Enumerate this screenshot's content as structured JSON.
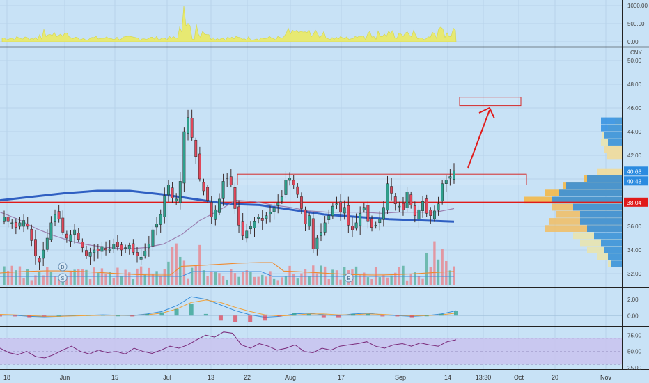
{
  "chart_data": [
    {
      "type": "bar",
      "panel": "top-volume",
      "title": "",
      "ylim": [
        0,
        1000
      ],
      "yticks": [
        "1000.00",
        "500.00",
        "0.00"
      ],
      "color": "#e9e96a"
    },
    {
      "type": "candlestick",
      "panel": "price",
      "title": "",
      "currency": "CNY",
      "ylim": [
        31,
        51
      ],
      "yticks": [
        "50.00",
        "48.00",
        "46.00",
        "44.00",
        "42.00",
        "40.00",
        "38.00",
        "36.00",
        "34.00",
        "32.00"
      ],
      "xticks": [
        "18",
        "Jun",
        "15",
        "Jul",
        "13",
        "22",
        "Aug",
        "17",
        "Sep",
        "14",
        "13:30",
        "Oct",
        "20",
        "Nov"
      ],
      "series": [
        {
          "name": "",
          "kind": "close",
          "values": [
            36.8,
            36.4,
            36.3,
            35.9,
            36.3,
            36.5,
            36.0,
            34.8,
            33.5,
            33.0,
            34.0,
            35.0,
            36.3,
            37.0,
            36.6,
            35.5,
            35.0,
            35.3,
            35.7,
            34.9,
            34.2,
            33.5,
            33.8,
            34.0,
            33.9,
            34.3,
            34.0,
            34.1,
            34.5,
            34.3,
            34.0,
            34.2,
            34.4,
            33.8,
            33.5,
            33.4,
            33.9,
            34.5,
            35.7,
            36.2,
            37.0,
            38.6,
            39.5,
            38.4,
            38.3,
            39.8,
            44.0,
            45.2,
            43.5,
            41.9,
            40.0,
            39.0,
            38.2,
            36.8,
            37.4,
            38.3,
            39.8,
            40.1,
            39.5,
            37.5,
            36.1,
            35.2,
            35.6,
            36.0,
            36.4,
            36.8,
            36.5,
            36.9,
            37.2,
            37.6,
            38.0,
            38.5,
            39.9,
            40.1,
            39.5,
            38.7,
            37.5,
            36.2,
            36.9,
            34.1,
            35.0,
            35.5,
            36.3,
            36.9,
            37.7,
            37.9,
            37.2,
            37.6,
            36.1,
            35.7,
            36.3,
            37.1,
            37.6,
            36.4,
            35.9,
            36.1,
            36.6,
            37.6,
            39.6,
            38.8,
            37.9,
            37.7,
            37.4,
            38.9,
            37.8,
            36.9,
            37.4,
            38.1,
            37.1,
            36.9,
            37.3,
            37.9,
            39.6,
            39.9,
            40.2,
            40.7
          ]
        },
        {
          "name": "",
          "kind": "ma-long",
          "color": "#2f5fc2",
          "values": [
            38.2,
            38.5,
            38.8,
            39.0,
            39.0,
            38.7,
            38.3,
            37.9,
            37.8,
            37.4,
            37.0,
            36.8,
            36.6,
            36.5,
            36.4
          ]
        },
        {
          "name": "",
          "kind": "ma-short",
          "color": "#9b7fb0",
          "values": [
            37.2,
            36.6,
            35.8,
            35.2,
            34.7,
            34.4,
            34.2,
            34.1,
            34.2,
            34.5,
            35.3,
            36.5,
            37.3,
            38.2,
            38.1,
            37.8,
            37.6,
            37.3,
            37.2,
            37.2,
            37.2,
            37.1,
            37.2,
            37.2,
            37.2,
            37.5
          ]
        }
      ],
      "price_labels": {
        "last": "40.63",
        "time": "40:43",
        "level": "38.04"
      },
      "level_line": 38.04,
      "resistance_zone": [
        39.5,
        40.4
      ],
      "target_zone": [
        46.2,
        46.9
      ],
      "markers": [
        "D",
        "S",
        "E"
      ],
      "volume_profile": "right-side, multicolor bands"
    },
    {
      "type": "line",
      "panel": "macd",
      "title": "",
      "ylim": [
        -1,
        3
      ],
      "yticks": [
        "2.00",
        "0.00"
      ],
      "series": [
        {
          "name": "",
          "color": "#3a8fd9",
          "values": [
            0.1,
            0.05,
            -0.1,
            -0.15,
            -0.1,
            0.0,
            0.05,
            0.1,
            0.05,
            0.0,
            0.2,
            0.5,
            1.2,
            2.3,
            2.0,
            1.3,
            0.6,
            0.1,
            -0.2,
            -0.1,
            0.2,
            0.3,
            0.1,
            0.0,
            0.2,
            0.3,
            0.1,
            0.0,
            -0.1,
            0.0,
            0.2,
            0.6
          ]
        },
        {
          "name": "",
          "color": "#f0a23a",
          "values": [
            0.15,
            0.1,
            0.0,
            -0.1,
            -0.1,
            -0.05,
            0.0,
            0.05,
            0.05,
            0.05,
            0.1,
            0.3,
            0.8,
            1.6,
            1.9,
            1.6,
            1.0,
            0.5,
            0.1,
            -0.05,
            0.05,
            0.2,
            0.2,
            0.1,
            0.1,
            0.2,
            0.15,
            0.05,
            0.0,
            0.0,
            0.1,
            0.3
          ]
        }
      ]
    },
    {
      "type": "line",
      "panel": "rsi",
      "title": "",
      "ylim": [
        25,
        85
      ],
      "yticks": [
        "75.00",
        "50.00",
        "25.00"
      ],
      "band": [
        30,
        70
      ],
      "series": [
        {
          "name": "",
          "color": "#7a2a7a",
          "values": [
            55,
            48,
            45,
            50,
            42,
            40,
            45,
            52,
            58,
            50,
            46,
            52,
            48,
            50,
            46,
            55,
            50,
            47,
            52,
            58,
            55,
            60,
            68,
            75,
            72,
            80,
            78,
            60,
            55,
            62,
            58,
            52,
            55,
            60,
            50,
            48,
            55,
            52,
            58,
            60,
            62,
            65,
            58,
            55,
            60,
            62,
            58,
            63,
            60,
            58,
            65,
            68
          ]
        }
      ]
    }
  ]
}
